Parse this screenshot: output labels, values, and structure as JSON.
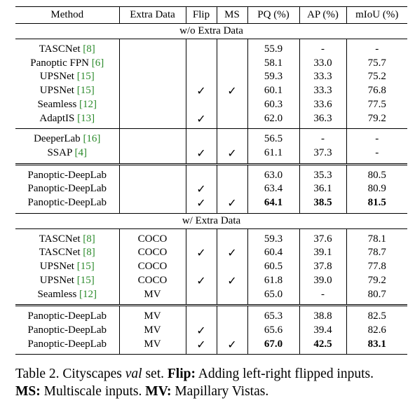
{
  "table": {
    "headers": [
      "Method",
      "Extra Data",
      "Flip",
      "MS",
      "PQ (%)",
      "AP (%)",
      "mIoU (%)"
    ],
    "check_mark": "✓",
    "sections": [
      {
        "title": "w/o Extra Data",
        "groups": [
          [
            {
              "method": "TASCNet",
              "ref": "[8]",
              "extra": "",
              "flip": false,
              "ms": false,
              "pq": "55.9",
              "ap": "-",
              "miou": "-"
            },
            {
              "method": "Panoptic FPN",
              "ref": "[6]",
              "extra": "",
              "flip": false,
              "ms": false,
              "pq": "58.1",
              "ap": "33.0",
              "miou": "75.7"
            },
            {
              "method": "UPSNet",
              "ref": "[15]",
              "extra": "",
              "flip": false,
              "ms": false,
              "pq": "59.3",
              "ap": "33.3",
              "miou": "75.2"
            },
            {
              "method": "UPSNet",
              "ref": "[15]",
              "extra": "",
              "flip": true,
              "ms": true,
              "pq": "60.1",
              "ap": "33.3",
              "miou": "76.8"
            },
            {
              "method": "Seamless",
              "ref": "[12]",
              "extra": "",
              "flip": false,
              "ms": false,
              "pq": "60.3",
              "ap": "33.6",
              "miou": "77.5"
            },
            {
              "method": "AdaptIS",
              "ref": "[13]",
              "extra": "",
              "flip": true,
              "ms": false,
              "pq": "62.0",
              "ap": "36.3",
              "miou": "79.2"
            }
          ],
          [
            {
              "method": "DeeperLab",
              "ref": "[16]",
              "extra": "",
              "flip": false,
              "ms": false,
              "pq": "56.5",
              "ap": "-",
              "miou": "-"
            },
            {
              "method": "SSAP",
              "ref": "[4]",
              "extra": "",
              "flip": true,
              "ms": true,
              "pq": "61.1",
              "ap": "37.3",
              "miou": "-"
            }
          ],
          [
            {
              "method": "Panoptic-DeepLab",
              "ref": "",
              "extra": "",
              "flip": false,
              "ms": false,
              "pq": "63.0",
              "ap": "35.3",
              "miou": "80.5"
            },
            {
              "method": "Panoptic-DeepLab",
              "ref": "",
              "extra": "",
              "flip": true,
              "ms": false,
              "pq": "63.4",
              "ap": "36.1",
              "miou": "80.9"
            },
            {
              "method": "Panoptic-DeepLab",
              "ref": "",
              "extra": "",
              "flip": true,
              "ms": true,
              "pq": "64.1",
              "ap": "38.5",
              "miou": "81.5",
              "bold": true
            }
          ]
        ]
      },
      {
        "title": "w/ Extra Data",
        "groups": [
          [
            {
              "method": "TASCNet",
              "ref": "[8]",
              "extra": "COCO",
              "flip": false,
              "ms": false,
              "pq": "59.3",
              "ap": "37.6",
              "miou": "78.1"
            },
            {
              "method": "TASCNet",
              "ref": "[8]",
              "extra": "COCO",
              "flip": true,
              "ms": true,
              "pq": "60.4",
              "ap": "39.1",
              "miou": "78.7"
            },
            {
              "method": "UPSNet",
              "ref": "[15]",
              "extra": "COCO",
              "flip": false,
              "ms": false,
              "pq": "60.5",
              "ap": "37.8",
              "miou": "77.8"
            },
            {
              "method": "UPSNet",
              "ref": "[15]",
              "extra": "COCO",
              "flip": true,
              "ms": true,
              "pq": "61.8",
              "ap": "39.0",
              "miou": "79.2"
            },
            {
              "method": "Seamless",
              "ref": "[12]",
              "extra": "MV",
              "flip": false,
              "ms": false,
              "pq": "65.0",
              "ap": "-",
              "miou": "80.7"
            }
          ],
          [
            {
              "method": "Panoptic-DeepLab",
              "ref": "",
              "extra": "MV",
              "flip": false,
              "ms": false,
              "pq": "65.3",
              "ap": "38.8",
              "miou": "82.5"
            },
            {
              "method": "Panoptic-DeepLab",
              "ref": "",
              "extra": "MV",
              "flip": true,
              "ms": false,
              "pq": "65.6",
              "ap": "39.4",
              "miou": "82.6"
            },
            {
              "method": "Panoptic-DeepLab",
              "ref": "",
              "extra": "MV",
              "flip": true,
              "ms": true,
              "pq": "67.0",
              "ap": "42.5",
              "miou": "83.1",
              "bold": true
            }
          ]
        ]
      }
    ]
  },
  "caption": {
    "label": "Table 2. Cityscapes ",
    "val_italic": "val",
    "set_text": " set. ",
    "flip_bold": "Flip:",
    "flip_desc": " Adding left-right flipped inputs.",
    "ms_bold": "MS:",
    "ms_desc": " Multiscale inputs. ",
    "mv_bold": "MV:",
    "mv_desc": " Mapillary Vistas."
  },
  "colors": {
    "text": "#000000",
    "reference_link": "#2a8a2a",
    "background": "#ffffff"
  }
}
